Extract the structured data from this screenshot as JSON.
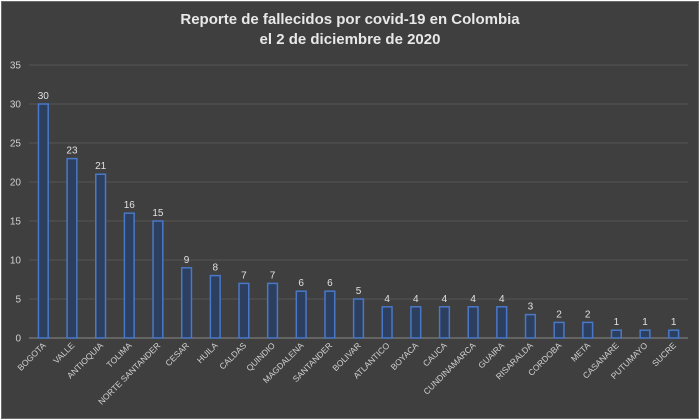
{
  "chart_data": {
    "type": "bar",
    "title_line1": "Reporte de fallecidos por covid-19 en Colombia",
    "title_line2": "el 2 de diciembre de 2020",
    "xlabel": "",
    "ylabel": "",
    "ylim": [
      0,
      35
    ],
    "yticks": [
      0,
      5,
      10,
      15,
      20,
      25,
      30,
      35
    ],
    "grid": true,
    "legend": "none",
    "bar_color": "#4a78c8",
    "categories": [
      "BOGOTA",
      "VALLE",
      "ANTIOQUIA",
      "TOLIMA",
      "NORTE SANTANDER",
      "CESAR",
      "HUILA",
      "CALDAS",
      "QUINDIO",
      "MAGDALENA",
      "SANTANDER",
      "BOLIVAR",
      "ATLANTICO",
      "BOYACA",
      "CAUCA",
      "CUNDINAMARCA",
      "GUAIRA",
      "RISARALDA",
      "CORDOBA",
      "META",
      "CASANARE",
      "PUTUMAYO",
      "SUCRE"
    ],
    "values": [
      30,
      23,
      21,
      16,
      15,
      9,
      8,
      7,
      7,
      6,
      6,
      5,
      4,
      4,
      4,
      4,
      4,
      3,
      2,
      2,
      1,
      1,
      1
    ]
  }
}
